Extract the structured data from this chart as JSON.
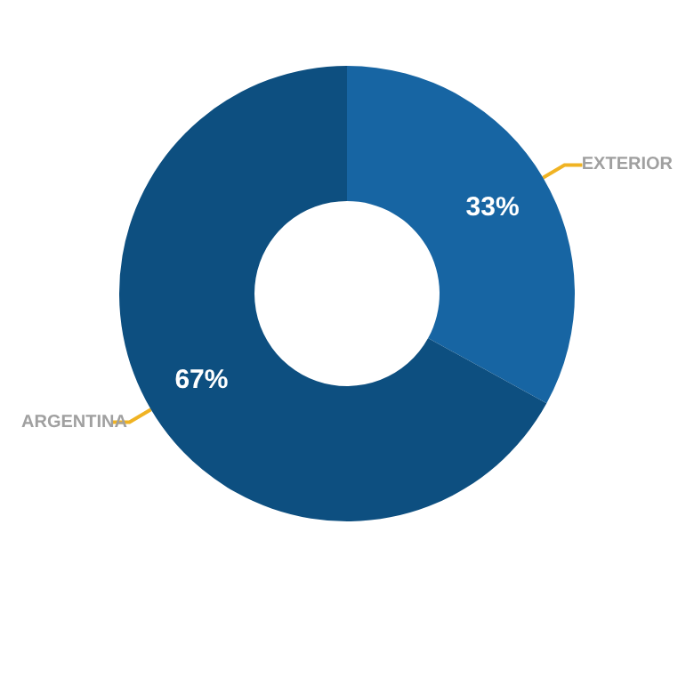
{
  "chart_data": {
    "type": "donut",
    "categories": [
      "EXTERIOR",
      "ARGENTINA"
    ],
    "values": [
      33,
      67
    ],
    "colors": [
      "#1765a3",
      "#0d4f80"
    ],
    "value_labels": [
      "33%",
      "67%"
    ],
    "legend": false
  }
}
